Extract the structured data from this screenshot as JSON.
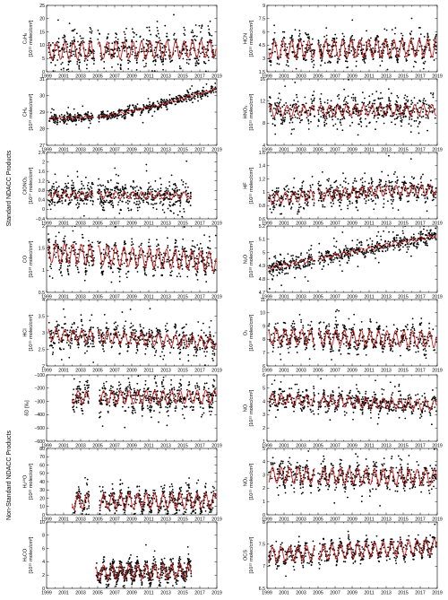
{
  "figure": {
    "group_labels": {
      "standard": "Standard NDACC Products",
      "nonstandard": "Non-Standard NDACC Products"
    },
    "x_tick_labels": [
      "1999",
      "2001",
      "2003",
      "2005",
      "2007",
      "2009",
      "2011",
      "2013",
      "2015",
      "2017",
      "2019"
    ]
  },
  "colors": {
    "points": "#000000",
    "fit": "#d21f1f"
  },
  "chart_data": [
    {
      "type": "scatter",
      "species": "C₂H₆",
      "unit": "[10¹⁵ molec/cm²]",
      "ylim": [
        0,
        25
      ],
      "yticks": [
        0,
        5,
        10,
        15,
        20,
        25
      ],
      "xlim": [
        1999,
        2019
      ],
      "data_start": 1999.2,
      "data_end": 2018.9,
      "gaps": [
        [
          2004.6,
          2005.0
        ]
      ],
      "series_mean": [
        [
          1999,
          7.8
        ],
        [
          2019,
          8.6
        ]
      ],
      "seasonal_amplitude": 3.2,
      "scatter_spread": 3.5,
      "season_phase": 0.1
    },
    {
      "type": "scatter",
      "species": "HCN",
      "unit": "[10¹⁵ molec/cm²]",
      "ylim": [
        1.5,
        9.0
      ],
      "yticks": [
        1.5,
        3.0,
        4.5,
        6.0,
        7.5,
        9.0
      ],
      "xlim": [
        1999,
        2019
      ],
      "data_start": 1999.2,
      "data_end": 2018.9,
      "gaps": [
        [
          2004.6,
          2005.0
        ]
      ],
      "series_mean": [
        [
          1999,
          4.0
        ],
        [
          2019,
          4.2
        ]
      ],
      "seasonal_amplitude": 1.0,
      "scatter_spread": 0.7,
      "season_phase": 0.35
    },
    {
      "type": "scatter",
      "species": "CH₄",
      "unit": "[10¹⁹ molec/cm²]",
      "ylim": [
        27,
        31
      ],
      "yticks": [
        27,
        28,
        29,
        30,
        31
      ],
      "xlim": [
        1999,
        2019
      ],
      "data_start": 1999.3,
      "data_end": 2018.9,
      "gaps": [
        [
          2004.5,
          2005.0
        ]
      ],
      "series_mean": [
        [
          1999,
          28.6
        ],
        [
          2006,
          28.75
        ],
        [
          2012,
          29.4
        ],
        [
          2019,
          30.4
        ]
      ],
      "seasonal_amplitude": 0.08,
      "scatter_spread": 0.18,
      "season_phase": 0.6
    },
    {
      "type": "scatter",
      "species": "HNO₃",
      "unit": "[10¹⁵ molec/cm²]",
      "ylim": [
        4,
        16
      ],
      "yticks": [
        4,
        8,
        12,
        16
      ],
      "xlim": [
        1999,
        2019
      ],
      "data_start": 1999.2,
      "data_end": 2018.9,
      "gaps": [
        [
          2004.6,
          2005.0
        ]
      ],
      "series_mean": [
        [
          1999,
          10.2
        ],
        [
          2019,
          10.4
        ]
      ],
      "seasonal_amplitude": 1.0,
      "scatter_spread": 1.4,
      "season_phase": 0.9
    },
    {
      "type": "scatter",
      "species": "ClONO₂",
      "unit": "[10¹⁴ molec/cm²]",
      "ylim": [
        -0.4,
        2.4
      ],
      "yticks": [
        -0.4,
        0.0,
        0.4,
        0.8,
        1.2,
        1.6,
        2.0,
        2.4
      ],
      "xlim": [
        1999,
        2019
      ],
      "data_start": 1999.2,
      "data_end": 2016.0,
      "gaps": [
        [
          2004.5,
          2005.0
        ]
      ],
      "series_mean": [
        [
          1999,
          0.62
        ],
        [
          2016,
          0.58
        ]
      ],
      "seasonal_amplitude": 0.15,
      "scatter_spread": 0.35,
      "season_phase": 0.1
    },
    {
      "type": "scatter",
      "species": "HF",
      "unit": "[10¹⁵ molec/cm²]",
      "ylim": [
        0.6,
        1.6
      ],
      "yticks": [
        0.6,
        0.8,
        1.0,
        1.2,
        1.4,
        1.6
      ],
      "xlim": [
        1999,
        2019
      ],
      "data_start": 1999.2,
      "data_end": 2018.9,
      "gaps": [
        [
          2004.6,
          2005.0
        ]
      ],
      "series_mean": [
        [
          1999,
          0.9
        ],
        [
          2012,
          1.02
        ],
        [
          2019,
          1.04
        ]
      ],
      "seasonal_amplitude": 0.08,
      "scatter_spread": 0.1,
      "season_phase": 0.1
    },
    {
      "type": "scatter",
      "species": "CO",
      "unit": "[10¹⁸ molec/cm²]",
      "ylim": [
        0.5,
        2.0
      ],
      "yticks": [
        0.5,
        1.0,
        1.5,
        2.0
      ],
      "xlim": [
        1999,
        2019
      ],
      "data_start": 1999.2,
      "data_end": 2018.9,
      "gaps": [
        [
          2004.6,
          2005.0
        ]
      ],
      "series_mean": [
        [
          1999,
          1.4
        ],
        [
          2019,
          1.2
        ]
      ],
      "seasonal_amplitude": 0.22,
      "scatter_spread": 0.18,
      "season_phase": 0.15
    },
    {
      "type": "scatter",
      "species": "N₂O",
      "unit": "[10¹⁸ molec/cm²]",
      "ylim": [
        4.7,
        5.2
      ],
      "yticks": [
        4.7,
        4.8,
        4.9,
        5.0,
        5.1,
        5.2
      ],
      "xlim": [
        1999,
        2019
      ],
      "data_start": 1999.2,
      "data_end": 2018.9,
      "gaps": [
        [
          2004.6,
          2005.0
        ]
      ],
      "series_mean": [
        [
          1999,
          4.88
        ],
        [
          2019,
          5.13
        ]
      ],
      "seasonal_amplitude": 0.015,
      "scatter_spread": 0.035,
      "season_phase": 0.2
    },
    {
      "type": "scatter",
      "species": "HCl",
      "unit": "[10¹⁵ molec/cm²]",
      "ylim": [
        2.0,
        4.0
      ],
      "yticks": [
        2.0,
        2.5,
        3.0,
        3.5,
        4.0
      ],
      "xlim": [
        1999,
        2019
      ],
      "data_start": 1999.2,
      "data_end": 2018.9,
      "gaps": [
        [
          2004.6,
          2005.0
        ]
      ],
      "series_mean": [
        [
          1999,
          2.95
        ],
        [
          2019,
          2.7
        ]
      ],
      "seasonal_amplitude": 0.18,
      "scatter_spread": 0.22,
      "season_phase": 0.1
    },
    {
      "type": "scatter",
      "species": "O₃",
      "unit": "[10¹⁸ molec/cm²]",
      "ylim": [
        6,
        11
      ],
      "yticks": [
        6,
        7,
        8,
        9,
        10,
        11
      ],
      "xlim": [
        1999,
        2019
      ],
      "data_start": 1999.2,
      "data_end": 2018.9,
      "gaps": [
        [
          2004.6,
          2005.0
        ]
      ],
      "series_mean": [
        [
          1999,
          8.2
        ],
        [
          2019,
          8.0
        ]
      ],
      "seasonal_amplitude": 0.6,
      "scatter_spread": 0.5,
      "season_phase": 0.15
    },
    {
      "type": "scatter",
      "species": "δD [‰]",
      "unit": "",
      "ylim": [
        -600,
        -100
      ],
      "yticks": [
        -600,
        -500,
        -400,
        -300,
        -200,
        -100
      ],
      "xlim": [
        1999,
        2019
      ],
      "data_start": 2002.0,
      "data_end": 2018.9,
      "gaps": [
        [
          2004.0,
          2005.2
        ]
      ],
      "series_mean": [
        [
          2002,
          -270
        ],
        [
          2019,
          -265
        ]
      ],
      "seasonal_amplitude": 50,
      "scatter_spread": 60,
      "season_phase": 0.55
    },
    {
      "type": "scatter",
      "species": "NO",
      "unit": "[10¹⁵ molec/cm²]",
      "ylim": [
        1,
        6
      ],
      "yticks": [
        1,
        2,
        3,
        4,
        5,
        6
      ],
      "xlim": [
        1999,
        2019
      ],
      "data_start": 1999.2,
      "data_end": 2018.9,
      "gaps": [
        [
          2004.6,
          2005.0
        ]
      ],
      "series_mean": [
        [
          1999,
          4.2
        ],
        [
          2019,
          3.7
        ]
      ],
      "seasonal_amplitude": 0.4,
      "scatter_spread": 0.45,
      "season_phase": 0.6
    },
    {
      "type": "scatter",
      "species": "H₂¹⁸O",
      "unit": "[10²¹ molec/cm²]",
      "ylim": [
        0,
        80
      ],
      "yticks": [
        0,
        10,
        20,
        30,
        40,
        50,
        60,
        70,
        80
      ],
      "xlim": [
        1999,
        2019
      ],
      "data_start": 2002.0,
      "data_end": 2018.9,
      "gaps": [
        [
          2004.0,
          2005.2
        ]
      ],
      "series_mean": [
        [
          2002,
          16
        ],
        [
          2019,
          17
        ]
      ],
      "seasonal_amplitude": 9,
      "scatter_spread": 8,
      "season_phase": 0.55
    },
    {
      "type": "scatter",
      "species": "NO₂",
      "unit": "[10¹⁵ molec/cm²]",
      "ylim": [
        0,
        5
      ],
      "yticks": [
        0,
        1,
        2,
        3,
        4,
        5
      ],
      "xlim": [
        1999,
        2019
      ],
      "data_start": 1999.2,
      "data_end": 2018.9,
      "gaps": [
        [
          2004.6,
          2005.0
        ]
      ],
      "series_mean": [
        [
          1999,
          3.0
        ],
        [
          2019,
          2.8
        ]
      ],
      "seasonal_amplitude": 0.6,
      "scatter_spread": 0.5,
      "season_phase": 0.6
    },
    {
      "type": "scatter",
      "species": "H₂CO",
      "unit": "[10¹⁵ molec/cm²]",
      "ylim": [
        0,
        10
      ],
      "yticks": [
        0,
        2,
        4,
        6,
        8,
        10
      ],
      "xlim": [
        1999,
        2019
      ],
      "data_start": 2004.8,
      "data_end": 2016.0,
      "gaps": [],
      "series_mean": [
        [
          2005,
          2.4
        ],
        [
          2016,
          2.6
        ]
      ],
      "seasonal_amplitude": 1.1,
      "scatter_spread": 0.8,
      "season_phase": 0.55
    },
    {
      "type": "scatter",
      "species": "OCS",
      "unit": "[10¹⁵ molec/cm²]",
      "ylim": [
        6.5,
        8.0
      ],
      "yticks": [
        6.5,
        7.0,
        7.5,
        8.0
      ],
      "xlim": [
        1999,
        2019
      ],
      "data_start": 1999.2,
      "data_end": 2018.9,
      "gaps": [
        [
          2004.6,
          2005.0
        ]
      ],
      "series_mean": [
        [
          1999,
          7.25
        ],
        [
          2019,
          7.45
        ]
      ],
      "seasonal_amplitude": 0.17,
      "scatter_spread": 0.1,
      "season_phase": 0.6
    }
  ]
}
